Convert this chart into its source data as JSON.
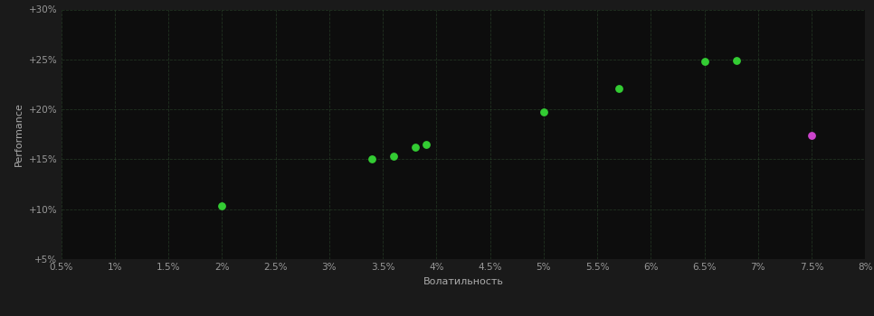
{
  "background_color": "#1a1a1a",
  "plot_bg_color": "#0d0d0d",
  "grid_color": "#2d4a2d",
  "xlabel": "Волатильность",
  "ylabel": "Performance",
  "xlim": [
    0.005,
    0.08
  ],
  "ylim": [
    0.05,
    0.3
  ],
  "xticks": [
    0.005,
    0.01,
    0.015,
    0.02,
    0.025,
    0.03,
    0.035,
    0.04,
    0.045,
    0.05,
    0.055,
    0.06,
    0.065,
    0.07,
    0.075,
    0.08
  ],
  "yticks": [
    0.05,
    0.1,
    0.15,
    0.2,
    0.25,
    0.3
  ],
  "green_points": [
    [
      0.02,
      0.103
    ],
    [
      0.034,
      0.15
    ],
    [
      0.036,
      0.153
    ],
    [
      0.038,
      0.162
    ],
    [
      0.039,
      0.165
    ],
    [
      0.05,
      0.197
    ],
    [
      0.057,
      0.221
    ],
    [
      0.065,
      0.248
    ],
    [
      0.068,
      0.249
    ]
  ],
  "magenta_points": [
    [
      0.075,
      0.174
    ]
  ],
  "point_color_green": "#33cc33",
  "point_color_magenta": "#cc44cc",
  "marker_size": 28,
  "tick_color": "#999999",
  "label_color": "#aaaaaa",
  "tick_fontsize": 7.5,
  "label_fontsize": 8,
  "grid_alpha": 0.6,
  "grid_linestyle": "--",
  "grid_linewidth": 0.6
}
